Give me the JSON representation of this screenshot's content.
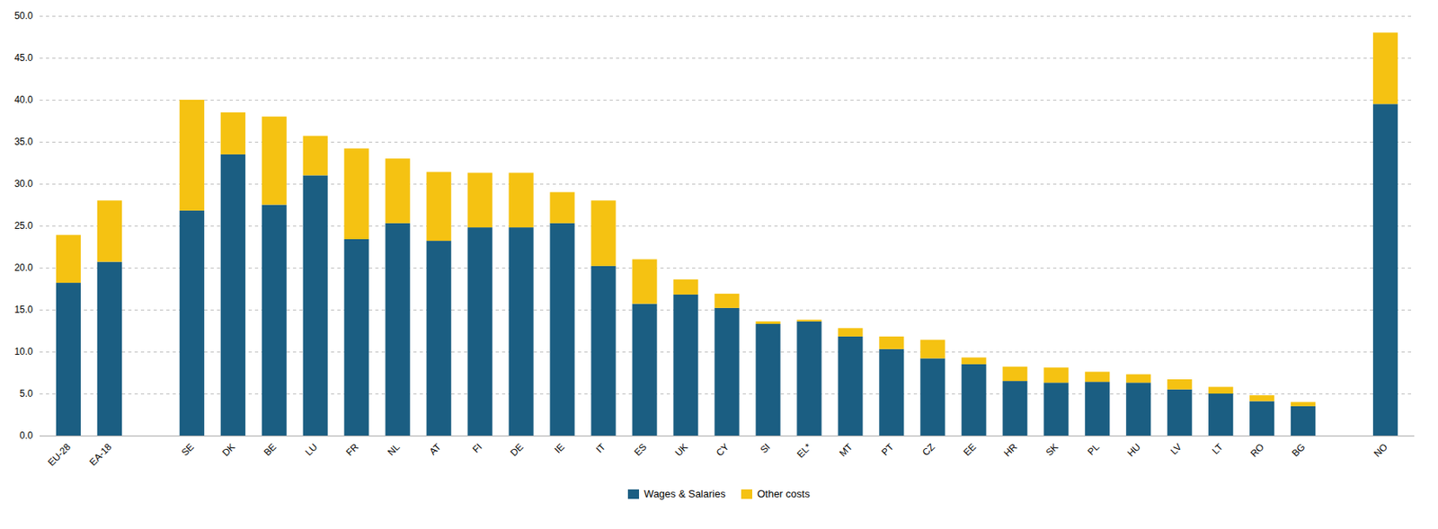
{
  "chart_data": {
    "type": "bar",
    "stacked": true,
    "categories": [
      "EU-28",
      "EA-18",
      null,
      "SE",
      "DK",
      "BE",
      "LU",
      "FR",
      "NL",
      "AT",
      "FI",
      "DE",
      "IE",
      "IT",
      "ES",
      "UK",
      "CY",
      "SI",
      "EL*",
      "MT",
      "PT",
      "CZ",
      "EE",
      "HR",
      "SK",
      "PL",
      "HU",
      "LV",
      "LT",
      "RO",
      "BG",
      null,
      "NO"
    ],
    "series": [
      {
        "name": "Wages & Salaries",
        "color": "#1b5e82",
        "values": [
          18.2,
          20.7,
          0,
          26.8,
          33.5,
          27.5,
          31.0,
          23.4,
          25.3,
          23.2,
          24.8,
          24.8,
          25.3,
          20.2,
          15.7,
          16.8,
          15.2,
          13.3,
          13.6,
          11.8,
          10.3,
          9.2,
          8.5,
          6.5,
          6.3,
          6.4,
          6.3,
          5.5,
          5.0,
          4.1,
          3.5,
          0,
          39.5
        ]
      },
      {
        "name": "Other costs",
        "color": "#f5c212",
        "values": [
          5.7,
          7.3,
          0,
          13.2,
          5.0,
          10.5,
          4.7,
          10.8,
          7.7,
          8.2,
          6.5,
          6.5,
          3.7,
          7.8,
          5.3,
          1.8,
          1.7,
          0.3,
          0.2,
          1.0,
          1.5,
          2.2,
          0.8,
          1.7,
          1.8,
          1.2,
          1.0,
          1.2,
          0.8,
          0.7,
          0.5,
          0,
          8.5
        ]
      }
    ],
    "ylim": [
      0,
      50
    ],
    "yticks": [
      {
        "value": 0,
        "label": "0.0"
      },
      {
        "value": 5,
        "label": "5.0"
      },
      {
        "value": 10,
        "label": "10.0"
      },
      {
        "value": 15,
        "label": "15.0"
      },
      {
        "value": 20,
        "label": "20.0"
      },
      {
        "value": 25,
        "label": "25.0"
      },
      {
        "value": 30,
        "label": "30.0"
      },
      {
        "value": 35,
        "label": "35.0"
      },
      {
        "value": 40,
        "label": "40.0"
      },
      {
        "value": 45,
        "label": "45.0"
      },
      {
        "value": 50,
        "label": "50.0"
      }
    ],
    "grid": true,
    "legend": "bottom"
  }
}
